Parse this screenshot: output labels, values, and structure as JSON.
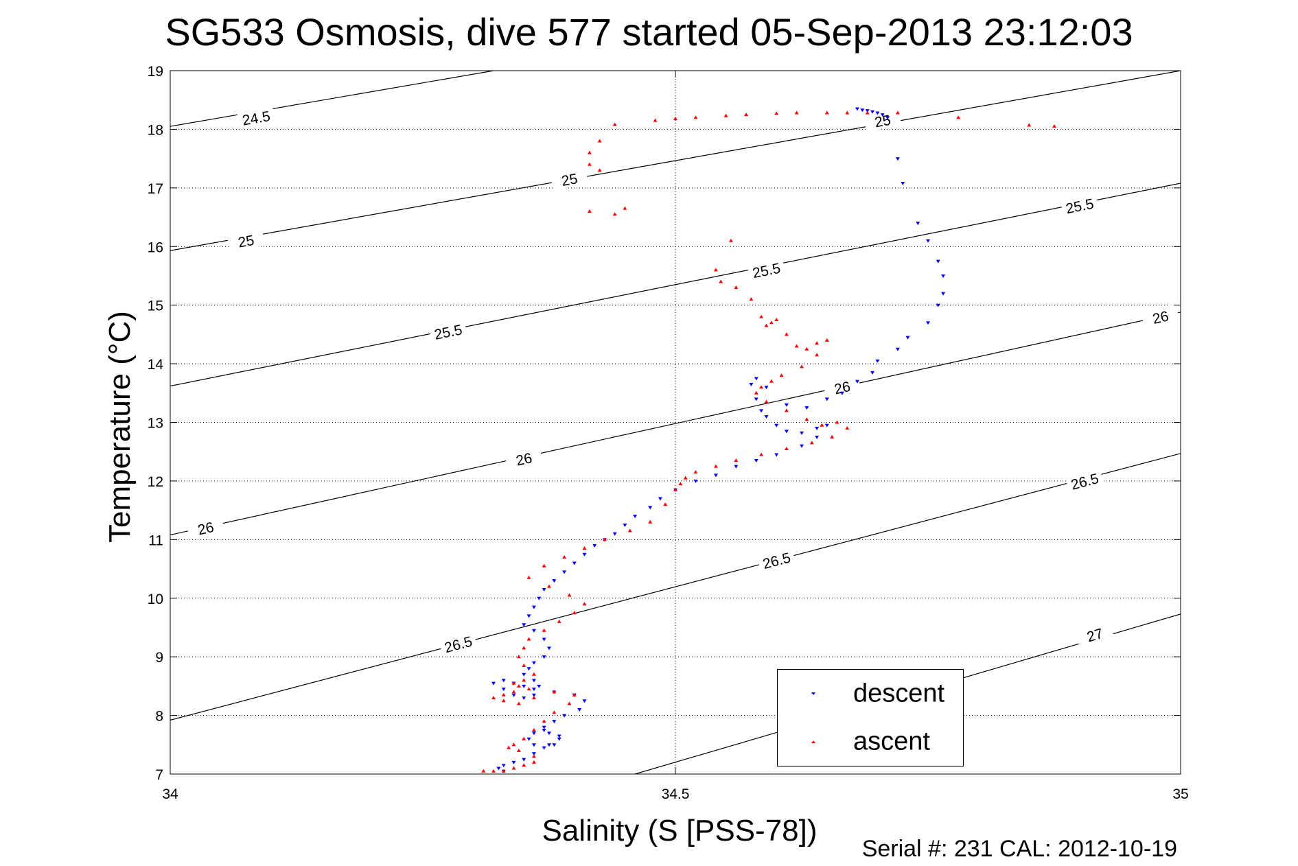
{
  "chart_data": {
    "type": "scatter",
    "title": "SG533 Osmosis, dive 577 started 05-Sep-2013 23:12:03",
    "xlabel": "Salinity (S [PSS-78])",
    "ylabel": "Temperature (°C)",
    "xlim": [
      34,
      35
    ],
    "ylim": [
      7,
      19
    ],
    "xticks": [
      34,
      34.5,
      35
    ],
    "yticks": [
      7,
      8,
      9,
      10,
      11,
      12,
      13,
      14,
      15,
      16,
      17,
      18,
      19
    ],
    "grid": true,
    "grid_style": "dotted",
    "footer": "Serial #: 231  CAL: 2012-10-19",
    "legend": {
      "placement": "bottom-right"
    },
    "colors": {
      "descent": "#0000ff",
      "ascent": "#ff0000",
      "isopycnal": "#000000"
    },
    "isopycnals": [
      {
        "label": "24.5",
        "points": [
          [
            34.0,
            18.05
          ],
          [
            34.32,
            19.0
          ]
        ],
        "label_at": [
          34.085,
          18.2
        ]
      },
      {
        "label": "25",
        "points": [
          [
            34.0,
            15.93
          ],
          [
            35.0,
            19.0
          ]
        ],
        "label_at": [
          [
            34.075,
            16.1
          ],
          [
            34.395,
            17.15
          ],
          [
            34.705,
            18.15
          ]
        ]
      },
      {
        "label": "25.5",
        "points": [
          [
            34.0,
            13.62
          ],
          [
            35.0,
            17.08
          ]
        ],
        "label_at": [
          [
            34.275,
            14.55
          ],
          [
            34.59,
            15.6
          ],
          [
            34.9,
            16.7
          ]
        ]
      },
      {
        "label": "26",
        "points": [
          [
            34.0,
            11.08
          ],
          [
            35.0,
            14.88
          ]
        ],
        "label_at": [
          [
            34.035,
            11.2
          ],
          [
            34.35,
            12.38
          ],
          [
            34.665,
            13.6
          ],
          [
            34.98,
            14.8
          ]
        ]
      },
      {
        "label": "26.5",
        "points": [
          [
            34.0,
            7.92
          ],
          [
            35.0,
            12.47
          ]
        ],
        "label_at": [
          [
            34.285,
            9.22
          ],
          [
            34.6,
            10.65
          ],
          [
            34.905,
            12.0
          ]
        ]
      },
      {
        "label": "27",
        "points": [
          [
            34.46,
            7.0
          ],
          [
            35.0,
            9.73
          ]
        ],
        "label_at": [
          34.915,
          9.38
        ]
      }
    ],
    "series": [
      {
        "name": "descent",
        "marker": "triangle-down",
        "x": [
          34.68,
          34.685,
          34.69,
          34.695,
          34.7,
          34.705,
          34.71,
          34.72,
          34.725,
          34.74,
          34.75,
          34.76,
          34.765,
          34.765,
          34.76,
          34.75,
          34.73,
          34.72,
          34.7,
          34.695,
          34.68,
          34.665,
          34.65,
          34.63,
          34.61,
          34.59,
          34.58,
          34.575,
          34.58,
          34.585,
          34.59,
          34.6,
          34.61,
          34.625,
          34.64,
          34.65,
          34.64,
          34.625,
          34.6,
          34.58,
          34.56,
          34.54,
          34.52,
          34.5,
          34.485,
          34.475,
          34.46,
          34.45,
          34.44,
          34.43,
          34.42,
          34.41,
          34.4,
          34.39,
          34.38,
          34.37,
          34.365,
          34.36,
          34.355,
          34.35,
          34.36,
          34.37,
          34.375,
          34.37,
          34.36,
          34.355,
          34.35,
          34.36,
          34.365,
          34.36,
          34.35,
          34.34,
          34.33,
          34.32,
          34.33,
          34.34,
          34.35,
          34.36,
          34.38,
          34.4,
          34.41,
          34.405,
          34.39,
          34.38,
          34.37,
          34.375,
          34.385,
          34.38,
          34.37,
          34.36,
          34.355,
          34.36,
          34.37,
          34.385,
          34.375,
          34.36,
          34.35,
          34.34,
          34.33,
          34.325,
          34.33
        ],
        "y": [
          18.35,
          18.33,
          18.32,
          18.3,
          18.28,
          18.25,
          18.2,
          17.5,
          17.08,
          16.4,
          16.1,
          15.75,
          15.5,
          15.2,
          15.0,
          14.7,
          14.45,
          14.25,
          14.05,
          13.85,
          13.7,
          13.5,
          13.4,
          13.25,
          13.3,
          13.6,
          13.75,
          13.65,
          13.4,
          13.2,
          13.1,
          12.95,
          12.85,
          12.82,
          12.9,
          12.95,
          12.75,
          12.6,
          12.45,
          12.35,
          12.25,
          12.1,
          12.0,
          11.85,
          11.7,
          11.55,
          11.4,
          11.25,
          11.1,
          11.0,
          10.9,
          10.75,
          10.6,
          10.45,
          10.3,
          10.15,
          10.0,
          9.85,
          9.7,
          9.55,
          9.45,
          9.3,
          9.15,
          9.0,
          8.9,
          8.8,
          8.7,
          8.6,
          8.5,
          8.45,
          8.5,
          8.55,
          8.6,
          8.55,
          8.45,
          8.35,
          8.3,
          8.35,
          8.4,
          8.35,
          8.25,
          8.1,
          8.0,
          7.9,
          7.8,
          7.7,
          7.6,
          7.5,
          7.45,
          7.5,
          7.6,
          7.7,
          7.75,
          7.65,
          7.5,
          7.35,
          7.25,
          7.2,
          7.15,
          7.1,
          7.05
        ]
      },
      {
        "name": "ascent",
        "marker": "triangle-up",
        "x": [
          34.875,
          34.85,
          34.78,
          34.72,
          34.69,
          34.67,
          34.65,
          34.62,
          34.6,
          34.57,
          34.55,
          34.52,
          34.5,
          34.48,
          34.44,
          34.425,
          34.415,
          34.415,
          34.425,
          34.415,
          34.44,
          34.45,
          34.555,
          34.54,
          34.545,
          34.56,
          34.575,
          34.585,
          34.59,
          34.595,
          34.6,
          34.61,
          34.62,
          34.63,
          34.64,
          34.65,
          34.64,
          34.625,
          34.605,
          34.595,
          34.585,
          34.58,
          34.59,
          34.61,
          34.63,
          34.645,
          34.66,
          34.67,
          34.655,
          34.635,
          34.61,
          34.585,
          34.56,
          34.54,
          34.52,
          34.51,
          34.505,
          34.5,
          34.49,
          34.475,
          34.455,
          34.43,
          34.41,
          34.39,
          34.37,
          34.355,
          34.375,
          34.395,
          34.41,
          34.4,
          34.385,
          34.37,
          34.355,
          34.35,
          34.345,
          34.35,
          34.36,
          34.35,
          34.34,
          34.345,
          34.355,
          34.34,
          34.33,
          34.32,
          34.33,
          34.345,
          34.36,
          34.38,
          34.4,
          34.395,
          34.38,
          34.37,
          34.36,
          34.35,
          34.34,
          34.335,
          34.345,
          34.36,
          34.36,
          34.35,
          34.34,
          34.33,
          34.32,
          34.31
        ],
        "y": [
          18.05,
          18.07,
          18.2,
          18.28,
          18.28,
          18.28,
          18.28,
          18.28,
          18.27,
          18.25,
          18.23,
          18.2,
          18.18,
          18.15,
          18.08,
          17.8,
          17.6,
          17.4,
          17.3,
          16.6,
          16.55,
          16.65,
          16.1,
          15.6,
          15.4,
          15.3,
          15.1,
          14.8,
          14.65,
          14.7,
          14.75,
          14.5,
          14.3,
          14.25,
          14.35,
          14.4,
          14.15,
          13.95,
          13.8,
          13.7,
          13.6,
          13.5,
          13.35,
          13.2,
          13.05,
          12.95,
          13.0,
          12.9,
          12.75,
          12.65,
          12.55,
          12.45,
          12.35,
          12.25,
          12.15,
          12.05,
          11.95,
          11.85,
          11.6,
          11.3,
          11.15,
          11.0,
          10.85,
          10.7,
          10.55,
          10.35,
          10.2,
          10.05,
          9.9,
          9.75,
          9.6,
          9.45,
          9.3,
          9.15,
          9.0,
          8.85,
          8.7,
          8.6,
          8.55,
          8.5,
          8.45,
          8.4,
          8.35,
          8.3,
          8.25,
          8.2,
          8.3,
          8.4,
          8.35,
          8.2,
          8.05,
          7.9,
          7.75,
          7.6,
          7.5,
          7.45,
          7.4,
          7.3,
          7.2,
          7.15,
          7.1,
          7.05,
          7.05,
          7.05
        ]
      }
    ]
  }
}
